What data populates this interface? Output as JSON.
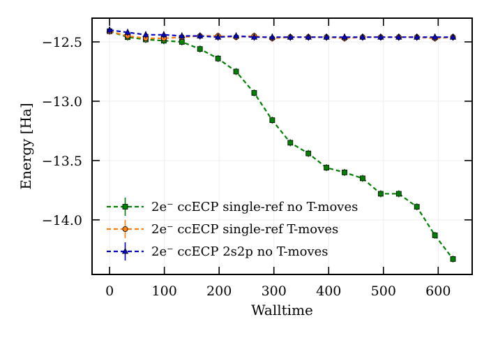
{
  "chart_data": {
    "type": "line",
    "xlabel": "Walltime",
    "ylabel": "Energy [Ha]",
    "xlim": [
      -32,
      662
    ],
    "ylim": [
      -14.46,
      -12.3
    ],
    "xticks": [
      0,
      100,
      200,
      300,
      400,
      500,
      600
    ],
    "xtick_labels": [
      "0",
      "100",
      "200",
      "300",
      "400",
      "500",
      "600"
    ],
    "yticks": [
      -12.5,
      -13.0,
      -13.5,
      -14.0
    ],
    "ytick_labels": [
      "−12.5",
      "−13.0",
      "−13.5",
      "−14.0"
    ],
    "grid": true,
    "legend_position": "lower-left",
    "series": [
      {
        "name": "2e⁻ ccECP single-ref no T-moves",
        "color": "#008000",
        "marker": "square",
        "linestyle": "dashed",
        "x": [
          0,
          33,
          66,
          99,
          132,
          165,
          198,
          231,
          264,
          297,
          330,
          363,
          396,
          429,
          462,
          495,
          528,
          561,
          594,
          627
        ],
        "y": [
          -12.41,
          -12.46,
          -12.48,
          -12.49,
          -12.5,
          -12.56,
          -12.64,
          -12.75,
          -12.93,
          -13.16,
          -13.35,
          -13.44,
          -13.56,
          -13.6,
          -13.65,
          -13.78,
          -13.78,
          -13.89,
          -14.13,
          -14.33
        ]
      },
      {
        "name": "2e⁻ ccECP single-ref T-moves",
        "color": "#ff7f0e",
        "marker": "circle",
        "linestyle": "dashed",
        "x": [
          0,
          33,
          66,
          99,
          132,
          165,
          198,
          231,
          264,
          297,
          330,
          363,
          396,
          429,
          462,
          495,
          528,
          561,
          594,
          627
        ],
        "y": [
          -12.41,
          -12.45,
          -12.47,
          -12.47,
          -12.46,
          -12.45,
          -12.45,
          -12.46,
          -12.45,
          -12.47,
          -12.46,
          -12.46,
          -12.46,
          -12.47,
          -12.46,
          -12.46,
          -12.46,
          -12.46,
          -12.47,
          -12.46
        ]
      },
      {
        "name": "2e⁻ ccECP 2s2p no T-moves",
        "color": "#0000cc",
        "marker": "triangle",
        "linestyle": "dashed",
        "x": [
          0,
          33,
          66,
          99,
          132,
          165,
          198,
          231,
          264,
          297,
          330,
          363,
          396,
          429,
          462,
          495,
          528,
          561,
          594,
          627
        ],
        "y": [
          -12.4,
          -12.42,
          -12.44,
          -12.44,
          -12.45,
          -12.45,
          -12.46,
          -12.45,
          -12.46,
          -12.46,
          -12.46,
          -12.46,
          -12.46,
          -12.46,
          -12.46,
          -12.46,
          -12.46,
          -12.46,
          -12.46,
          -12.46
        ]
      }
    ]
  }
}
